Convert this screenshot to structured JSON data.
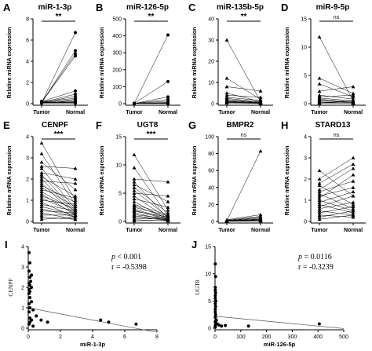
{
  "panels": [
    {
      "label": "A",
      "title": "miR-1-3p",
      "ylabel": "Relative miRNA expression",
      "sig": "**"
    },
    {
      "label": "B",
      "title": "miR-126-5p",
      "ylabel": "Relative miRNA expression",
      "sig": "**"
    },
    {
      "label": "C",
      "title": "miR-135b-5p",
      "ylabel": "Relative miRNA expression",
      "sig": "**"
    },
    {
      "label": "D",
      "title": "miR-9-5p",
      "ylabel": "Relative miRNA expression",
      "sig": "ns"
    },
    {
      "label": "E",
      "title": "CENPF",
      "ylabel": "Relative mRNA expression",
      "sig": "***"
    },
    {
      "label": "F",
      "title": "UGT8",
      "ylabel": "Relative mRNA expression",
      "sig": "***"
    },
    {
      "label": "G",
      "title": "BMPR2",
      "ylabel": "Relative mRNA expression",
      "sig": "ns"
    },
    {
      "label": "H",
      "title": "STARD13",
      "ylabel": "Relative mRNA expression",
      "sig": "ns"
    },
    {
      "label": "I"
    },
    {
      "label": "J"
    }
  ],
  "chart_data": [
    {
      "type": "line",
      "title": "miR-1-3p",
      "ylabel": "Relative miRNA expression",
      "categories": [
        "Tumor",
        "Normal"
      ],
      "ylim": [
        0,
        8
      ],
      "yticks": [
        0,
        2,
        4,
        6,
        8
      ],
      "significance": "**",
      "marker": "circle",
      "pairs": [
        [
          0.1,
          6.7
        ],
        [
          0.1,
          5.0
        ],
        [
          0.15,
          4.7
        ],
        [
          0.1,
          4.5
        ],
        [
          0.2,
          1.2
        ],
        [
          0.1,
          0.9
        ],
        [
          0.1,
          0.7
        ],
        [
          0.2,
          0.5
        ],
        [
          0.1,
          0.4
        ],
        [
          0.05,
          0.3
        ],
        [
          0.1,
          0.2
        ],
        [
          0.1,
          0.15
        ],
        [
          0.05,
          0.1
        ],
        [
          0.1,
          0.1
        ],
        [
          0.05,
          0.05
        ],
        [
          0.2,
          0.05
        ]
      ]
    },
    {
      "type": "line",
      "title": "miR-126-5p",
      "ylabel": "Relative miRNA expression",
      "categories": [
        "Tumor",
        "Normal"
      ],
      "ylim": [
        0,
        500
      ],
      "yticks": [
        0,
        100,
        200,
        300,
        400,
        500
      ],
      "significance": "**",
      "marker": "circle",
      "pairs": [
        [
          1,
          405
        ],
        [
          2,
          130
        ],
        [
          1,
          40
        ],
        [
          1,
          25
        ],
        [
          2,
          15
        ],
        [
          1,
          8
        ],
        [
          1,
          5
        ],
        [
          2,
          3
        ],
        [
          1,
          2
        ],
        [
          1,
          1
        ],
        [
          1,
          1
        ],
        [
          1,
          0.5
        ]
      ]
    },
    {
      "type": "line",
      "title": "miR-135b-5p",
      "ylabel": "Relative miRNA expression",
      "categories": [
        "Tumor",
        "Normal"
      ],
      "ylim": [
        0,
        40
      ],
      "yticks": [
        0,
        10,
        20,
        30,
        40
      ],
      "significance": "**",
      "marker": "triangle",
      "pairs": [
        [
          30,
          1
        ],
        [
          12,
          2
        ],
        [
          8,
          6
        ],
        [
          5,
          1
        ],
        [
          4,
          3
        ],
        [
          3,
          1.5
        ],
        [
          2.5,
          0.8
        ],
        [
          2,
          0.6
        ],
        [
          1.5,
          0.5
        ],
        [
          1.2,
          0.4
        ],
        [
          1,
          0.3
        ],
        [
          0.8,
          0.3
        ],
        [
          0.6,
          0.2
        ],
        [
          0.5,
          0.2
        ],
        [
          0.3,
          0.1
        ]
      ]
    },
    {
      "type": "line",
      "title": "miR-9-5p",
      "ylabel": "Relative miRNA expression",
      "categories": [
        "Tumor",
        "Normal"
      ],
      "ylim": [
        0,
        15
      ],
      "yticks": [
        0,
        5,
        10,
        15
      ],
      "significance": "ns",
      "marker": "triangle",
      "pairs": [
        [
          11.8,
          0.5
        ],
        [
          4.5,
          1.8
        ],
        [
          3.5,
          1.2
        ],
        [
          2.2,
          3.0
        ],
        [
          1.5,
          0.8
        ],
        [
          1.2,
          1.5
        ],
        [
          1.0,
          0.5
        ],
        [
          0.8,
          0.3
        ],
        [
          0.6,
          0.2
        ],
        [
          0.5,
          0.2
        ],
        [
          0.3,
          0.1
        ],
        [
          0.2,
          0.1
        ],
        [
          0.1,
          0.5
        ],
        [
          0.1,
          0.1
        ]
      ]
    },
    {
      "type": "line",
      "title": "CENPF",
      "ylabel": "Relative mRNA expression",
      "categories": [
        "Tumor",
        "Normal"
      ],
      "ylim": [
        0,
        4
      ],
      "yticks": [
        0,
        1,
        2,
        3,
        4
      ],
      "significance": "***",
      "marker": "triangle",
      "pairs": [
        [
          3.7,
          1.0
        ],
        [
          3.2,
          0.8
        ],
        [
          2.8,
          1.5
        ],
        [
          2.6,
          2.5
        ],
        [
          2.5,
          0.6
        ],
        [
          2.3,
          2.0
        ],
        [
          2.2,
          0.5
        ],
        [
          2.1,
          1.2
        ],
        [
          2.0,
          0.4
        ],
        [
          1.9,
          1.8
        ],
        [
          1.8,
          0.3
        ],
        [
          1.7,
          0.9
        ],
        [
          1.6,
          0.7
        ],
        [
          1.5,
          1.1
        ],
        [
          1.4,
          0.5
        ],
        [
          1.3,
          0.3
        ],
        [
          1.2,
          0.6
        ],
        [
          1.1,
          0.4
        ],
        [
          1.0,
          0.8
        ],
        [
          0.9,
          0.2
        ],
        [
          0.8,
          0.5
        ],
        [
          0.7,
          0.3
        ],
        [
          0.6,
          0.2
        ],
        [
          0.5,
          0.4
        ],
        [
          0.4,
          0.1
        ],
        [
          0.3,
          0.3
        ],
        [
          0.2,
          0.1
        ],
        [
          0.1,
          0.2
        ]
      ]
    },
    {
      "type": "line",
      "title": "UGT8",
      "ylabel": "Relative mRNA expression",
      "categories": [
        "Tumor",
        "Normal"
      ],
      "ylim": [
        0,
        15
      ],
      "yticks": [
        0,
        5,
        10,
        15
      ],
      "significance": "***",
      "marker": "triangle",
      "pairs": [
        [
          11.8,
          2.0
        ],
        [
          9.5,
          1.0
        ],
        [
          7.5,
          7.0
        ],
        [
          7.0,
          0.5
        ],
        [
          6.5,
          3.5
        ],
        [
          6.0,
          1.5
        ],
        [
          5.5,
          0.8
        ],
        [
          5.0,
          4.5
        ],
        [
          4.5,
          0.5
        ],
        [
          4.0,
          2.5
        ],
        [
          3.5,
          0.3
        ],
        [
          3.0,
          1.2
        ],
        [
          2.8,
          0.6
        ],
        [
          2.5,
          1.0
        ],
        [
          2.2,
          0.4
        ],
        [
          2.0,
          0.3
        ],
        [
          1.8,
          0.8
        ],
        [
          1.5,
          0.2
        ],
        [
          1.2,
          0.5
        ],
        [
          1.0,
          0.3
        ],
        [
          0.8,
          0.2
        ],
        [
          0.5,
          0.4
        ],
        [
          0.3,
          0.1
        ],
        [
          0.1,
          0.2
        ]
      ]
    },
    {
      "type": "line",
      "title": "BMPR2",
      "ylabel": "Relative mRNA expression",
      "categories": [
        "Tumor",
        "Normal"
      ],
      "ylim": [
        0,
        100
      ],
      "yticks": [
        0,
        20,
        40,
        60,
        80,
        100
      ],
      "significance": "ns",
      "marker": "triangle",
      "pairs": [
        [
          1.0,
          83
        ],
        [
          2.0,
          8
        ],
        [
          1.5,
          6
        ],
        [
          1.0,
          5
        ],
        [
          0.8,
          4
        ],
        [
          0.6,
          3
        ],
        [
          0.5,
          2.5
        ],
        [
          0.4,
          2
        ],
        [
          0.3,
          1.5
        ],
        [
          0.2,
          1
        ],
        [
          0.2,
          0.8
        ],
        [
          0.1,
          0.5
        ]
      ]
    },
    {
      "type": "line",
      "title": "STARD13",
      "ylabel": "Relative mRNA expression",
      "categories": [
        "Tumor",
        "Normal"
      ],
      "ylim": [
        0,
        4
      ],
      "yticks": [
        0,
        1,
        2,
        3,
        4
      ],
      "significance": "ns",
      "marker": "triangle",
      "pairs": [
        [
          2.4,
          1.2
        ],
        [
          2.0,
          3.0
        ],
        [
          1.8,
          2.7
        ],
        [
          1.7,
          0.8
        ],
        [
          1.5,
          2.5
        ],
        [
          1.4,
          1.9
        ],
        [
          1.3,
          0.6
        ],
        [
          1.2,
          1.6
        ],
        [
          1.1,
          2.2
        ],
        [
          1.0,
          0.5
        ],
        [
          0.9,
          1.4
        ],
        [
          0.8,
          0.4
        ],
        [
          0.7,
          1.2
        ],
        [
          0.6,
          0.9
        ],
        [
          0.5,
          0.3
        ],
        [
          0.4,
          0.7
        ],
        [
          0.3,
          0.2
        ],
        [
          0.2,
          0.5
        ],
        [
          0.1,
          0.3
        ]
      ]
    },
    {
      "type": "scatter",
      "xlabel": "miR-1-3p",
      "ylabel": "CENPF",
      "xlim": [
        0,
        8
      ],
      "ylim": [
        0,
        4
      ],
      "xticks": [
        0,
        2,
        4,
        6,
        8
      ],
      "yticks": [
        0,
        1,
        2,
        3,
        4
      ],
      "p_value": "< 0.001",
      "r": "-0.5398",
      "stats_line1": [
        "p",
        " < 0.001"
      ],
      "stats_line2": "r = -0.5398",
      "regression": {
        "intercept": 1.0,
        "slope": -0.15
      },
      "points": [
        [
          0.05,
          3.7
        ],
        [
          0.1,
          3.2
        ],
        [
          0.05,
          2.8
        ],
        [
          0.2,
          2.6
        ],
        [
          0.1,
          2.5
        ],
        [
          0.15,
          2.3
        ],
        [
          0.05,
          2.2
        ],
        [
          0.1,
          2.1
        ],
        [
          0.2,
          2.0
        ],
        [
          0.05,
          1.9
        ],
        [
          0.1,
          1.8
        ],
        [
          0.05,
          1.7
        ],
        [
          0.1,
          1.5
        ],
        [
          0.2,
          1.3
        ],
        [
          0.05,
          1.2
        ],
        [
          0.1,
          1.0
        ],
        [
          0.3,
          0.9
        ],
        [
          0.05,
          0.8
        ],
        [
          0.5,
          0.6
        ],
        [
          0.1,
          0.5
        ],
        [
          0.2,
          0.4
        ],
        [
          0.8,
          0.4
        ],
        [
          0.1,
          0.3
        ],
        [
          1.2,
          0.3
        ],
        [
          0.05,
          0.2
        ],
        [
          0.3,
          0.1
        ],
        [
          4.5,
          0.4
        ],
        [
          5.0,
          0.3
        ],
        [
          6.7,
          0.2
        ]
      ]
    },
    {
      "type": "scatter",
      "xlabel": "miR-126-5p",
      "ylabel": "UGT8",
      "xlim": [
        0,
        500
      ],
      "ylim": [
        0,
        15
      ],
      "xticks": [
        0,
        100,
        200,
        300,
        400,
        500
      ],
      "yticks": [
        0,
        5,
        10,
        15
      ],
      "p_value": "0.0116",
      "r": "-0.3239",
      "stats_line1": [
        "p",
        " = 0.0116"
      ],
      "stats_line2": "r = -0.3239",
      "regression": {
        "intercept": 2.2,
        "slope": -0.0045
      },
      "points": [
        [
          1,
          11.8
        ],
        [
          2,
          9.5
        ],
        [
          1,
          7.5
        ],
        [
          1,
          7.0
        ],
        [
          2,
          6.5
        ],
        [
          1,
          6.0
        ],
        [
          1,
          5.5
        ],
        [
          3,
          5.0
        ],
        [
          1,
          4.5
        ],
        [
          2,
          4.0
        ],
        [
          1,
          3.5
        ],
        [
          1,
          3.0
        ],
        [
          2,
          2.5
        ],
        [
          1,
          2.0
        ],
        [
          5,
          1.5
        ],
        [
          1,
          1.2
        ],
        [
          2,
          1.0
        ],
        [
          8,
          0.8
        ],
        [
          1,
          0.5
        ],
        [
          15,
          0.6
        ],
        [
          25,
          0.4
        ],
        [
          40,
          0.5
        ],
        [
          130,
          0.4
        ],
        [
          405,
          0.8
        ],
        [
          1,
          0.2
        ]
      ]
    }
  ]
}
